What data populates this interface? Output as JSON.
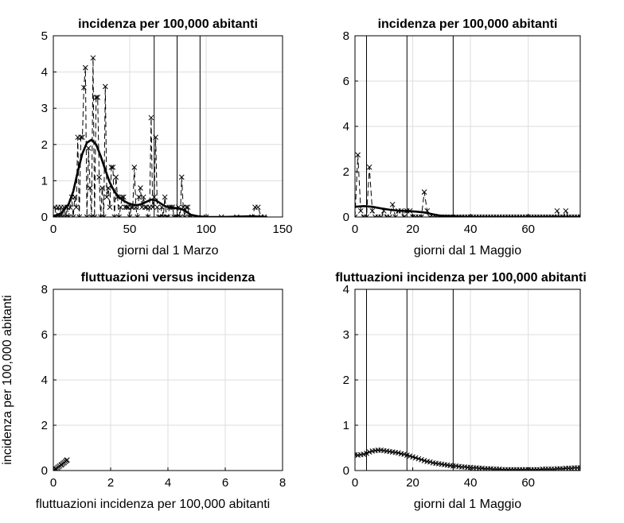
{
  "chart_data": [
    {
      "type": "line",
      "title": "incidenza per 100,000 abitanti",
      "xlabel": "giorni dal 1 Marzo",
      "ylabel": "",
      "xlim": [
        0,
        150
      ],
      "ylim": [
        0,
        5
      ],
      "xticks": [
        0,
        50,
        100,
        150
      ],
      "yticks": [
        0,
        1,
        2,
        3,
        4,
        5
      ],
      "grid": true,
      "vlines": [
        66,
        81,
        96
      ],
      "series": [
        {
          "style": "dashed-markers",
          "x": [
            1,
            2,
            3,
            4,
            5,
            6,
            7,
            8,
            9,
            10,
            11,
            12,
            13,
            14,
            15,
            16,
            17,
            18,
            19,
            20,
            21,
            22,
            23,
            24,
            25,
            26,
            27,
            28,
            29,
            30,
            31,
            32,
            33,
            34,
            35,
            36,
            37,
            38,
            39,
            40,
            41,
            42,
            43,
            44,
            45,
            46,
            47,
            48,
            49,
            50,
            51,
            52,
            53,
            54,
            55,
            56,
            57,
            58,
            59,
            60,
            61,
            62,
            63,
            64,
            65,
            66,
            67,
            68,
            69,
            70,
            71,
            72,
            73,
            74,
            75,
            76,
            77,
            78,
            79,
            80,
            81,
            82,
            83,
            84,
            85,
            86,
            87,
            88,
            89,
            90,
            100,
            110,
            120,
            130,
            132,
            134,
            136,
            138
          ],
          "y": [
            0.27,
            0.0,
            0.27,
            0.0,
            0.27,
            0.0,
            0.27,
            0.0,
            0.27,
            0.0,
            0.27,
            0.55,
            0.0,
            0.55,
            0.27,
            2.2,
            0.0,
            2.2,
            2.2,
            3.57,
            4.12,
            0.0,
            1.9,
            0.8,
            0.0,
            4.39,
            0.0,
            3.3,
            3.3,
            1.1,
            0.0,
            0.8,
            0.0,
            3.6,
            0.55,
            0.8,
            0.27,
            1.37,
            1.37,
            0.0,
            1.1,
            0.55,
            0.0,
            0.27,
            0.55,
            0.55,
            0.27,
            0.27,
            0.27,
            0.0,
            0.27,
            0.27,
            1.37,
            0.27,
            0.0,
            0.55,
            0.8,
            0.27,
            0.55,
            0.27,
            0.27,
            0.0,
            0.27,
            2.74,
            0.27,
            0.55,
            2.2,
            0.27,
            0.0,
            0.0,
            0.27,
            0.0,
            0.55,
            0.0,
            0.0,
            0.27,
            0.27,
            0.27,
            0.0,
            0.0,
            0.0,
            0.27,
            0.0,
            1.1,
            0.27,
            0.0,
            0.27,
            0.27,
            0.0,
            0.0,
            0.0,
            0.0,
            0.0,
            0.0,
            0.27,
            0.27,
            0.0,
            0.0
          ]
        },
        {
          "style": "smooth-thick",
          "x": [
            0,
            5,
            10,
            13,
            16,
            19,
            22,
            25,
            28,
            31,
            34,
            37,
            40,
            43,
            46,
            49,
            52,
            55,
            58,
            61,
            64,
            67,
            70,
            73,
            76,
            79,
            82,
            85,
            88,
            90,
            95,
            100,
            110,
            120,
            130,
            140
          ],
          "y": [
            0.02,
            0.1,
            0.35,
            0.7,
            1.25,
            1.75,
            2.05,
            2.13,
            2.0,
            1.68,
            1.3,
            0.95,
            0.7,
            0.55,
            0.45,
            0.38,
            0.34,
            0.33,
            0.36,
            0.42,
            0.48,
            0.46,
            0.38,
            0.3,
            0.26,
            0.25,
            0.24,
            0.2,
            0.12,
            0.06,
            0.02,
            0.0,
            0.0,
            0.01,
            0.02,
            0.0
          ]
        }
      ]
    },
    {
      "type": "line",
      "title": "incidenza per 100,000 abitanti",
      "xlabel": "giorni dal 1 Maggio",
      "ylabel": "",
      "xlim": [
        0,
        78
      ],
      "ylim": [
        0,
        8
      ],
      "xticks": [
        0,
        20,
        40,
        60
      ],
      "yticks": [
        0,
        2,
        4,
        6,
        8
      ],
      "grid": true,
      "vlines": [
        4,
        18,
        34
      ],
      "series": [
        {
          "style": "dashed-markers",
          "x": [
            0,
            1,
            2,
            3,
            4,
            5,
            6,
            7,
            8,
            9,
            10,
            11,
            12,
            13,
            14,
            15,
            16,
            17,
            18,
            19,
            20,
            21,
            22,
            23,
            24,
            25,
            26,
            27,
            28,
            29,
            30,
            31,
            32,
            33,
            34,
            35,
            36,
            37,
            38,
            39,
            40,
            41,
            42,
            43,
            44,
            45,
            46,
            47,
            48,
            49,
            50,
            51,
            52,
            53,
            54,
            55,
            56,
            57,
            58,
            59,
            60,
            61,
            62,
            63,
            64,
            65,
            66,
            67,
            68,
            69,
            70,
            71,
            72,
            73,
            74,
            75,
            76,
            77,
            78
          ],
          "y": [
            0.0,
            2.74,
            0.27,
            0.0,
            0.0,
            2.2,
            0.27,
            0.0,
            0.0,
            0.0,
            0.27,
            0.0,
            0.0,
            0.55,
            0.0,
            0.27,
            0.27,
            0.0,
            0.27,
            0.27,
            0.0,
            0.0,
            0.0,
            0.0,
            1.1,
            0.27,
            0.0,
            0.0,
            0.0,
            0.0,
            0.0,
            0.0,
            0.0,
            0.0,
            0.0,
            0.0,
            0.0,
            0.0,
            0.0,
            0.0,
            0.0,
            0.0,
            0.0,
            0.0,
            0.0,
            0.0,
            0.0,
            0.0,
            0.0,
            0.0,
            0.0,
            0.0,
            0.0,
            0.0,
            0.0,
            0.0,
            0.0,
            0.0,
            0.0,
            0.0,
            0.0,
            0.0,
            0.0,
            0.0,
            0.0,
            0.0,
            0.0,
            0.0,
            0.0,
            0.0,
            0.27,
            0.0,
            0.0,
            0.27,
            0.0,
            0.0,
            0.0,
            0.0,
            0.0
          ]
        },
        {
          "style": "smooth-thick",
          "x": [
            0,
            3,
            6,
            9,
            12,
            15,
            18,
            21,
            24,
            27,
            30,
            35,
            40,
            50,
            60,
            70,
            78
          ],
          "y": [
            0.45,
            0.48,
            0.45,
            0.38,
            0.32,
            0.28,
            0.26,
            0.24,
            0.2,
            0.12,
            0.05,
            0.02,
            0.0,
            0.0,
            0.0,
            0.01,
            0.0
          ]
        }
      ]
    },
    {
      "type": "scatter",
      "title": "fluttuazioni versus incidenza",
      "xlabel": "fluttuazioni incidenza per 100,000 abitanti",
      "ylabel": "incidenza per 100,000 abitanti",
      "xlim": [
        0,
        8
      ],
      "ylim": [
        0,
        8
      ],
      "xticks": [
        0,
        2,
        4,
        6,
        8
      ],
      "yticks": [
        0,
        2,
        4,
        6,
        8
      ],
      "grid": true,
      "vlines": [],
      "series": [
        {
          "style": "markers-line",
          "x": [
            0.02,
            0.05,
            0.08,
            0.1,
            0.14,
            0.18,
            0.22,
            0.27,
            0.3,
            0.34,
            0.38,
            0.42,
            0.46,
            0.48
          ],
          "y": [
            0.0,
            0.03,
            0.06,
            0.08,
            0.12,
            0.16,
            0.2,
            0.24,
            0.27,
            0.31,
            0.35,
            0.4,
            0.44,
            0.47
          ]
        }
      ]
    },
    {
      "type": "line",
      "title": "fluttuazioni incidenza per 100,000 abitanti",
      "xlabel": "giorni dal 1 Maggio",
      "ylabel": "",
      "xlim": [
        0,
        78
      ],
      "ylim": [
        0,
        4
      ],
      "xticks": [
        0,
        20,
        40,
        60
      ],
      "yticks": [
        0,
        1,
        2,
        3,
        4
      ],
      "grid": true,
      "vlines": [
        4,
        18,
        34
      ],
      "series": [
        {
          "style": "markers-line",
          "x": [
            0,
            1,
            2,
            3,
            4,
            5,
            6,
            7,
            8,
            9,
            10,
            11,
            12,
            13,
            14,
            15,
            16,
            17,
            18,
            19,
            20,
            21,
            22,
            23,
            24,
            25,
            26,
            27,
            28,
            29,
            30,
            31,
            32,
            33,
            34,
            35,
            36,
            37,
            38,
            39,
            40,
            41,
            42,
            43,
            44,
            45,
            46,
            47,
            48,
            49,
            50,
            51,
            52,
            53,
            54,
            55,
            56,
            57,
            58,
            59,
            60,
            61,
            62,
            63,
            64,
            65,
            66,
            67,
            68,
            69,
            70,
            71,
            72,
            73,
            74,
            75,
            76,
            77,
            78
          ],
          "y": [
            0.35,
            0.34,
            0.35,
            0.36,
            0.38,
            0.41,
            0.43,
            0.44,
            0.45,
            0.45,
            0.44,
            0.43,
            0.42,
            0.41,
            0.4,
            0.39,
            0.37,
            0.36,
            0.34,
            0.32,
            0.3,
            0.28,
            0.26,
            0.24,
            0.22,
            0.2,
            0.19,
            0.17,
            0.16,
            0.15,
            0.14,
            0.13,
            0.12,
            0.11,
            0.1,
            0.1,
            0.09,
            0.08,
            0.08,
            0.07,
            0.07,
            0.06,
            0.06,
            0.05,
            0.05,
            0.04,
            0.04,
            0.04,
            0.03,
            0.03,
            0.03,
            0.02,
            0.02,
            0.02,
            0.02,
            0.02,
            0.02,
            0.02,
            0.02,
            0.02,
            0.02,
            0.02,
            0.02,
            0.02,
            0.02,
            0.03,
            0.03,
            0.03,
            0.03,
            0.03,
            0.04,
            0.04,
            0.04,
            0.05,
            0.05,
            0.05,
            0.06,
            0.06,
            0.06
          ]
        }
      ]
    }
  ]
}
